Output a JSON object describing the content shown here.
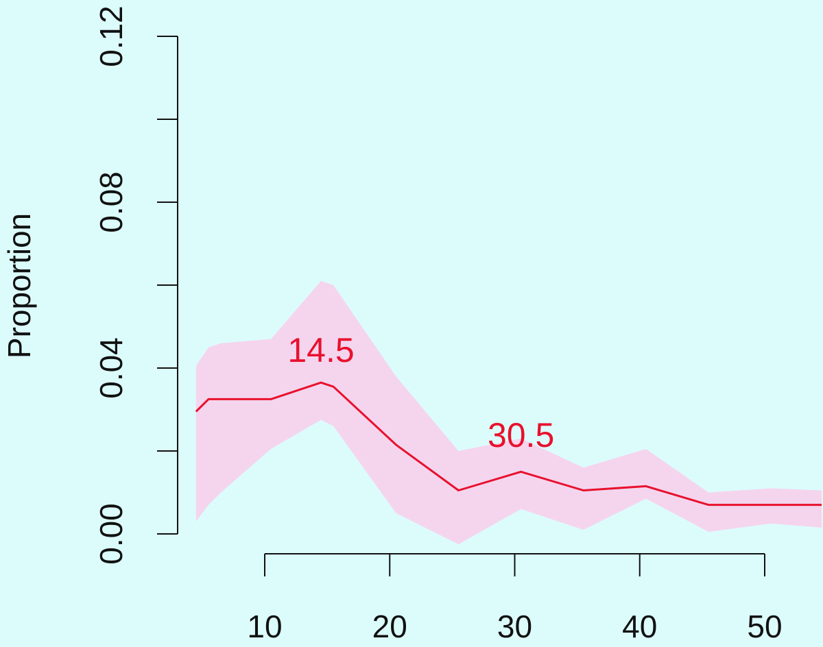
{
  "chart_data": {
    "type": "line",
    "title": "",
    "xlabel": "",
    "ylabel": "Proportion",
    "xlim": [
      4,
      55
    ],
    "ylim": [
      0,
      0.12
    ],
    "x_ticks": [
      10,
      20,
      30,
      40,
      50
    ],
    "x_tick_labels": [
      "10",
      "20",
      "30",
      "40",
      "50"
    ],
    "y_ticks": [
      0,
      0.02,
      0.04,
      0.06,
      0.08,
      0.1,
      0.12
    ],
    "y_tick_labels": [
      "0.00",
      "",
      "0.04",
      "",
      "0.08",
      "",
      "0.12"
    ],
    "grid": false,
    "background_color": "#dcfcfc",
    "line_color": "#e8112d",
    "band_color": "#f5d5ee",
    "series": [
      {
        "x": [
          4.5,
          5.5,
          6.5,
          10.5,
          14.5,
          15.5,
          20.5,
          25.5,
          30.5,
          35.5,
          40.5,
          45.5,
          50.5,
          55.5
        ],
        "values": [
          0.0295,
          0.0325,
          0.0325,
          0.0325,
          0.0365,
          0.0355,
          0.0215,
          0.0105,
          0.015,
          0.0105,
          0.0115,
          0.007,
          0.007,
          0.007
        ],
        "lower": [
          0.003,
          0.007,
          0.01,
          0.0205,
          0.0275,
          0.026,
          0.005,
          -0.0025,
          0.006,
          0.001,
          0.0085,
          0.0005,
          0.0025,
          0.0015
        ],
        "upper": [
          0.0405,
          0.045,
          0.046,
          0.047,
          0.061,
          0.06,
          0.038,
          0.02,
          0.023,
          0.016,
          0.0205,
          0.01,
          0.011,
          0.0105
        ]
      }
    ],
    "annotations": [
      {
        "text": "14.5",
        "x": 14.5,
        "y": 0.0445
      },
      {
        "text": "30.5",
        "x": 30.5,
        "y": 0.024
      }
    ]
  }
}
